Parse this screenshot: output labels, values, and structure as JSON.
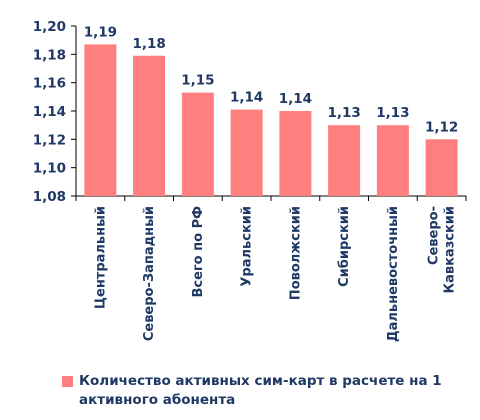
{
  "chart_data": {
    "type": "bar",
    "categories": [
      "Центральный",
      "Северо-Западный",
      "Всего по РФ",
      "Уральский",
      "Поволжский",
      "Сибирский",
      "Дальневосточный",
      "Северо-Кавказский"
    ],
    "category_lines": [
      [
        "Центральный"
      ],
      [
        "Северо-Западный"
      ],
      [
        "Всего по РФ"
      ],
      [
        "Уральский"
      ],
      [
        "Поволжский"
      ],
      [
        "Сибирский"
      ],
      [
        "Дальневосточный"
      ],
      [
        "Северо-",
        "Кавказский"
      ]
    ],
    "values": [
      1.187,
      1.179,
      1.153,
      1.141,
      1.14,
      1.13,
      1.13,
      1.12
    ],
    "data_labels": [
      "1,19",
      "1,18",
      "1,15",
      "1,14",
      "1,14",
      "1,13",
      "1,13",
      "1,12"
    ],
    "yticks": [
      1.08,
      1.1,
      1.12,
      1.14,
      1.16,
      1.18,
      1.2
    ],
    "ytick_labels": [
      "1,08",
      "1,10",
      "1,12",
      "1,14",
      "1,16",
      "1,18",
      "1,20"
    ],
    "ylim": [
      1.08,
      1.2
    ],
    "grid": false,
    "legend_position": "bottom",
    "series": [
      {
        "name": "Количество активных сим-карт в расчете на 1 активного абонента"
      }
    ]
  },
  "colors": {
    "bar": "#ff7f7f",
    "text": "#1f3864",
    "axis": "#000000"
  }
}
